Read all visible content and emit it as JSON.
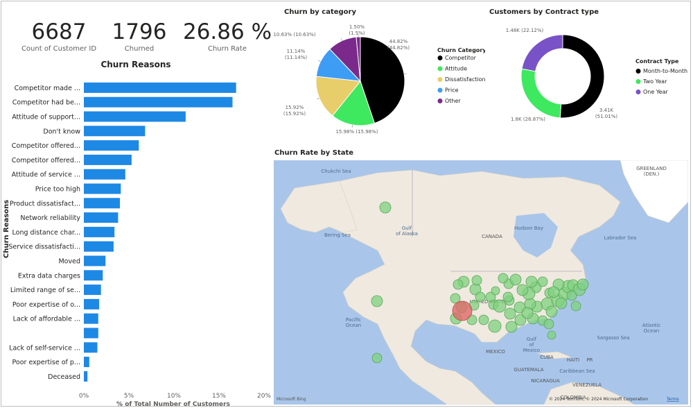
{
  "kpis": [
    {
      "value": "6687",
      "label": "Count of Customer ID"
    },
    {
      "value": "1796",
      "label": "Churned"
    },
    {
      "value": "26.86 %",
      "label": "Churn Rate"
    }
  ],
  "colors": {
    "bar": "#1e88e5",
    "competitor": "#000000",
    "attitude": "#3ee85f",
    "dissatisfaction": "#e8cd6b",
    "price": "#3d9df5",
    "other": "#7b2a8c",
    "month_to_month": "#000000",
    "two_year": "#3ee85f",
    "one_year": "#7a52c7",
    "ocean": "#a9c6ea",
    "land": "#efe9df",
    "bubble_green": "#7fd17f",
    "bubble_red": "#e06a6a"
  },
  "chart_data": [
    {
      "type": "bar",
      "orientation": "horizontal",
      "title": "Churn Reasons",
      "xlabel": "% of Total Number of Customers",
      "ylabel": "Churn Reasons",
      "xlim": [
        0,
        20
      ],
      "xticks": [
        "0%",
        "5%",
        "10%",
        "15%",
        "20%"
      ],
      "categories": [
        "Competitor made ...",
        "Competitor had be...",
        "Attitude of support...",
        "Don't know",
        "Competitor offered...",
        "Competitor offered...",
        "Attitude of service ...",
        "Price too high",
        "Product dissatisfact...",
        "Network reliability",
        "Long distance char...",
        "Service dissatisfacti...",
        "Moved",
        "Extra data charges",
        "Limited range of se...",
        "Poor expertise of o...",
        "Lack of affordable ...",
        "",
        "Lack of self-service ...",
        "Poor expertise of p...",
        "Deceased"
      ],
      "values": [
        16.9,
        16.5,
        11.3,
        6.8,
        6.1,
        5.3,
        4.6,
        4.1,
        4.0,
        3.8,
        3.4,
        3.3,
        2.4,
        2.1,
        1.9,
        1.7,
        1.6,
        1.6,
        1.5,
        0.6,
        0.4
      ]
    },
    {
      "type": "pie",
      "title": "Churn by category",
      "legend_title": "Churn Category",
      "legend_position": "right",
      "series": [
        {
          "name": "Competitor",
          "value": 44.82,
          "label": "44.82%\n(44.82%)",
          "color_key": "competitor"
        },
        {
          "name": "Attitude",
          "value": 15.98,
          "label": "15.98% (15.98%)",
          "color_key": "attitude"
        },
        {
          "name": "Dissatisfaction",
          "value": 15.92,
          "label": "15.92%\n(15.92%)",
          "color_key": "dissatisfaction"
        },
        {
          "name": "Price",
          "value": 11.14,
          "label": "11.14%\n(11.14%)",
          "color_key": "price"
        },
        {
          "name": "Other",
          "value": 10.63,
          "label": "10.63% (10.63%)",
          "color_key": "other"
        },
        {
          "name": "",
          "value": 1.5,
          "label": "1.50%\n(1.5%)",
          "color_key": "other"
        }
      ]
    },
    {
      "type": "donut",
      "title": "Customers by Contract type",
      "legend_title": "Contract Type",
      "legend_position": "right",
      "series": [
        {
          "name": "Month-to-Month",
          "value": 3.41,
          "label": "3.41K\n(51.01%)",
          "color_key": "month_to_month"
        },
        {
          "name": "Two Year",
          "value": 1.8,
          "label": "1.8K (26.87%)",
          "color_key": "two_year"
        },
        {
          "name": "One Year",
          "value": 1.48,
          "label": "1.48K (22.12%)",
          "color_key": "one_year"
        }
      ]
    },
    {
      "type": "map",
      "title": "Churn Rate by State",
      "labels": {
        "greenland": "GREENLAND\n(DEN.)",
        "canada": "CANADA",
        "usa": "UNITED STATES",
        "mexico": "MEXICO",
        "hudson_bay": "Hudson Bay",
        "labrador": "Labrador Sea",
        "bering": "Bering Sea",
        "alaska_gulf": "Gulf\nof Alaska",
        "pacific": "Pacific\nOcean",
        "atlantic": "Atlantic\nOcean",
        "sargasso": "Sargasso Sea",
        "gulf_mexico": "Gulf\nof\nMexico",
        "chukchi": "Chukchi Sea",
        "caribbean": "Caribbean Sea",
        "cuba": "CUBA",
        "haiti": "HAITI",
        "pr": "PR",
        "guatemala": "GUATEMALA",
        "nicaragua": "NICARAGUA",
        "venezuela": "VENEZUELA",
        "colombia": "COLOMBIA",
        "attribution": "© 2024 TomTom, © 2024 Microsoft Corporation",
        "terms": "Terms",
        "brand": "Microsoft Bing"
      }
    }
  ]
}
